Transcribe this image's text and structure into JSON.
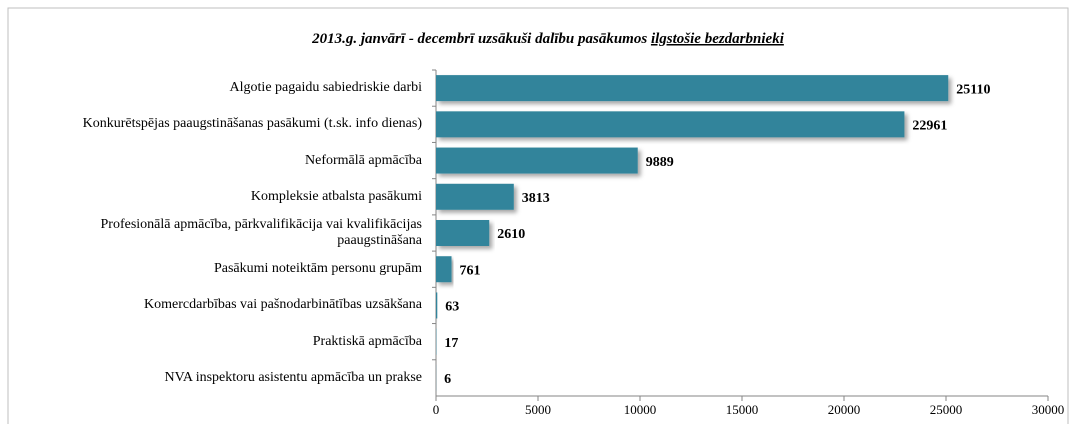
{
  "chart_data": {
    "type": "barh",
    "title": [
      "2013.g. janvārī - decembrī uzsākuši dalību pasākumos",
      "ilgstošie bezdarbnieki"
    ],
    "categories": [
      "Algotie pagaidu sabiedriskie darbi",
      "Konkurētspējas paaugstināšanas pasākumi (t.sk. info dienas)",
      "Neformālā apmācība",
      "Kompleksie atbalsta pasākumi",
      "Profesionālā apmācība, pārkvalifikācija vai kvalifikācijas paaugstināšana",
      "Pasākumi noteiktām personu grupām",
      "Komercdarbības vai pašnodarbinātības uzsākšana",
      "Praktiskā apmācība",
      "NVA inspektoru asistentu apmācība un prakse"
    ],
    "values": [
      25110,
      22961,
      9889,
      3813,
      2610,
      761,
      63,
      17,
      6
    ],
    "color": "#31849b",
    "xlim": [
      0,
      30000
    ],
    "xticks": [
      0,
      5000,
      10000,
      15000,
      20000,
      25000,
      30000
    ]
  }
}
